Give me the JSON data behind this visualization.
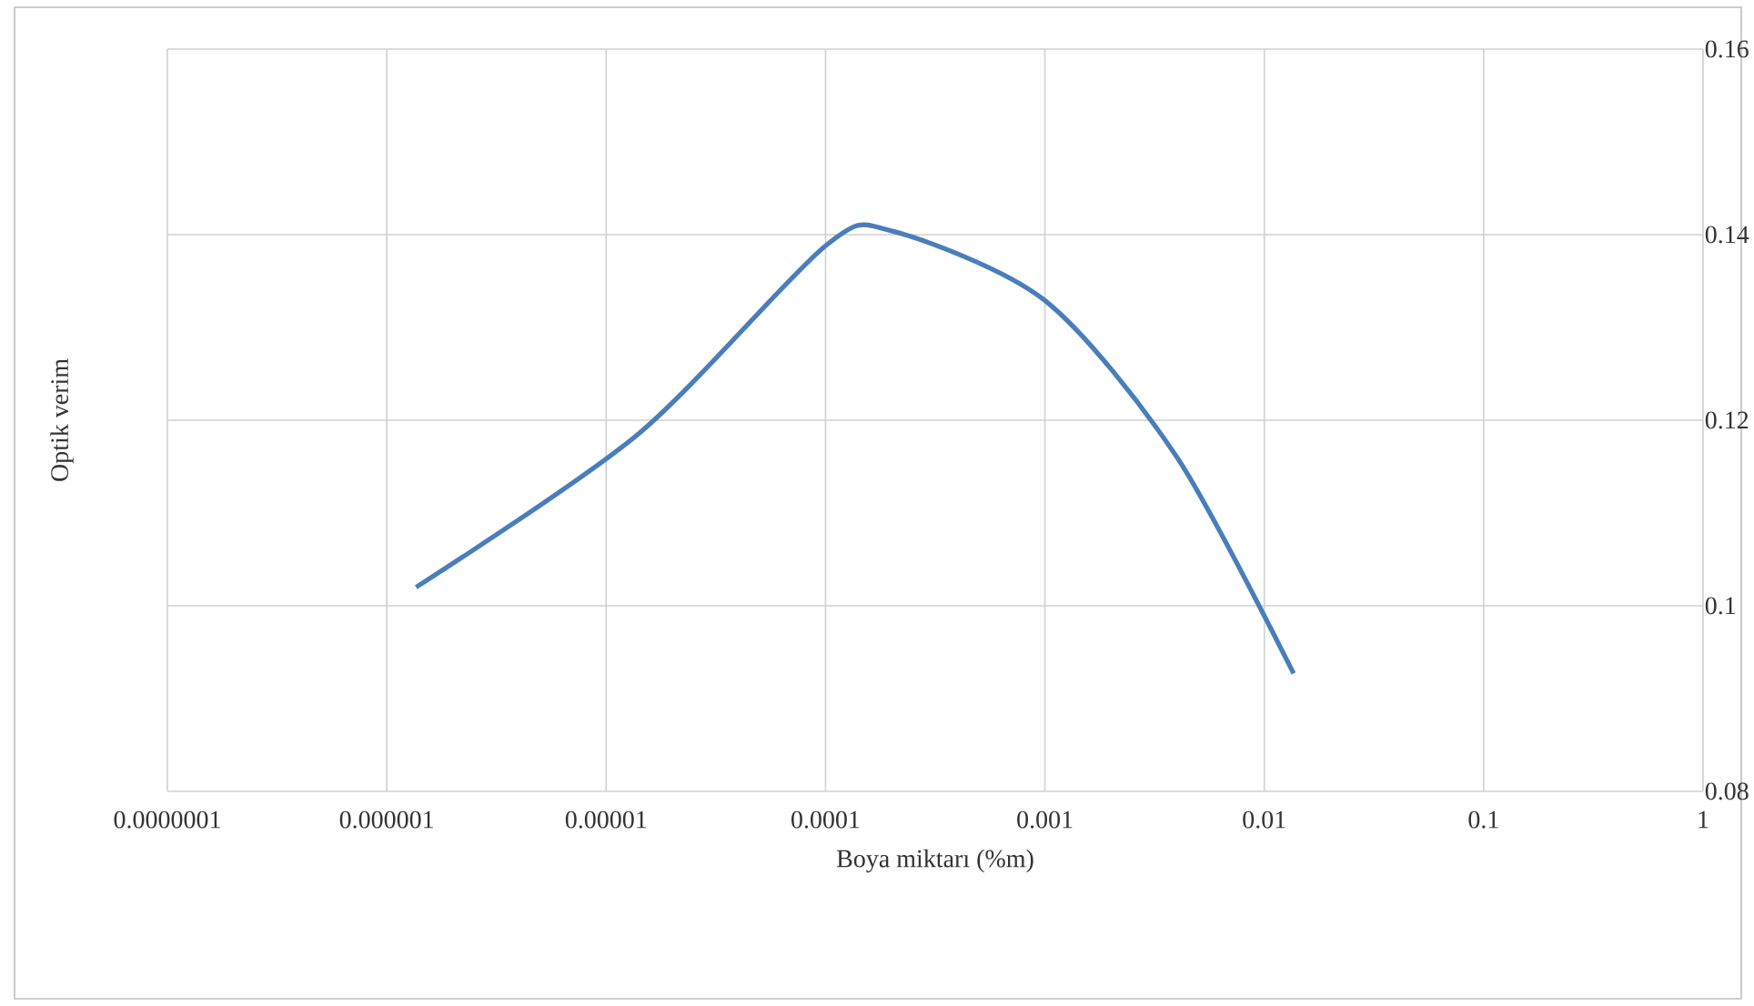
{
  "chart_data": {
    "type": "line",
    "xlabel": "Boya miktarı (%m)",
    "ylabel": "Optik verim",
    "x": [
      1.36e-06,
      1.4e-05,
      0.0001,
      0.0002,
      0.001,
      0.004,
      0.0136
    ],
    "series": [
      {
        "color": "#4a7ebb",
        "values": [
          0.102,
          0.1185,
          0.1388,
          0.1404,
          0.1329,
          0.116,
          0.0927
        ]
      }
    ],
    "log": "x",
    "xlim": [
      1e-07,
      1
    ],
    "ylim": [
      0.08,
      0.16
    ],
    "xticks": [
      {
        "value": 1e-07,
        "label": "0.0000001"
      },
      {
        "value": 1e-06,
        "label": "0.000001"
      },
      {
        "value": 1e-05,
        "label": "0.00001"
      },
      {
        "value": 0.0001,
        "label": "0.0001"
      },
      {
        "value": 0.001,
        "label": "0.001"
      },
      {
        "value": 0.01,
        "label": "0.01"
      },
      {
        "value": 0.1,
        "label": "0.1"
      },
      {
        "value": 1,
        "label": "1"
      }
    ],
    "yticks": [
      0.08,
      0.1,
      0.12,
      0.14,
      0.16
    ],
    "grid": true,
    "marker": "none",
    "line_style": "solid"
  }
}
